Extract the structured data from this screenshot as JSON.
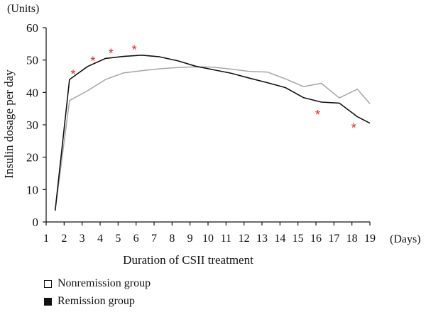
{
  "chart_data": {
    "type": "line",
    "xlabel": "Duration of CSII treatment",
    "ylabel": "Insulin dosage per day",
    "y_unit": "(Units)",
    "x_unit": "(Days)",
    "xlim": [
      1,
      19
    ],
    "ylim": [
      0,
      60
    ],
    "x_ticks": [
      1,
      2,
      3,
      4,
      5,
      6,
      7,
      8,
      9,
      10,
      11,
      12,
      13,
      14,
      15,
      16,
      17,
      18,
      19
    ],
    "y_ticks": [
      0,
      10,
      20,
      30,
      40,
      50,
      60
    ],
    "grid": false,
    "legend_position": "bottom-left",
    "series": [
      {
        "name": "Nonremission group",
        "color": "#a6a6a6",
        "legend_fill": "#ffffff",
        "x": [
          1.5,
          2.3,
          3.3,
          4.3,
          5.3,
          6.3,
          7.3,
          8.3,
          9.3,
          10.3,
          11.3,
          12.3,
          13.3,
          14.3,
          15.3,
          16.3,
          17.3,
          18.3,
          19
        ],
        "values": [
          3.5,
          37.5,
          40.5,
          44,
          46,
          46.7,
          47.3,
          47.7,
          47.9,
          47.8,
          47.2,
          46.5,
          46.3,
          44.2,
          41.8,
          42.8,
          38.3,
          41,
          36.5
        ]
      },
      {
        "name": "Remission group",
        "color": "#111111",
        "legend_fill": "#111111",
        "x": [
          1.5,
          2.3,
          3.3,
          4.3,
          5.3,
          6.3,
          7.3,
          8.3,
          9.3,
          10.3,
          11.3,
          12.3,
          13.3,
          14.3,
          15.3,
          16.3,
          17.3,
          18.3,
          19
        ],
        "values": [
          3.5,
          44,
          48,
          50.5,
          51.1,
          51.5,
          51,
          49.8,
          48.1,
          47,
          45.9,
          44.4,
          43,
          41.5,
          38.4,
          37,
          36.7,
          32.5,
          30.5
        ]
      }
    ],
    "annotations": {
      "symbol": "*",
      "color": "#e8202a",
      "points": [
        {
          "x": 2.5,
          "y": 46
        },
        {
          "x": 3.6,
          "y": 50
        },
        {
          "x": 4.6,
          "y": 52.5
        },
        {
          "x": 5.9,
          "y": 53.5
        },
        {
          "x": 16.1,
          "y": 33.5
        },
        {
          "x": 18.1,
          "y": 29.5
        }
      ]
    }
  }
}
